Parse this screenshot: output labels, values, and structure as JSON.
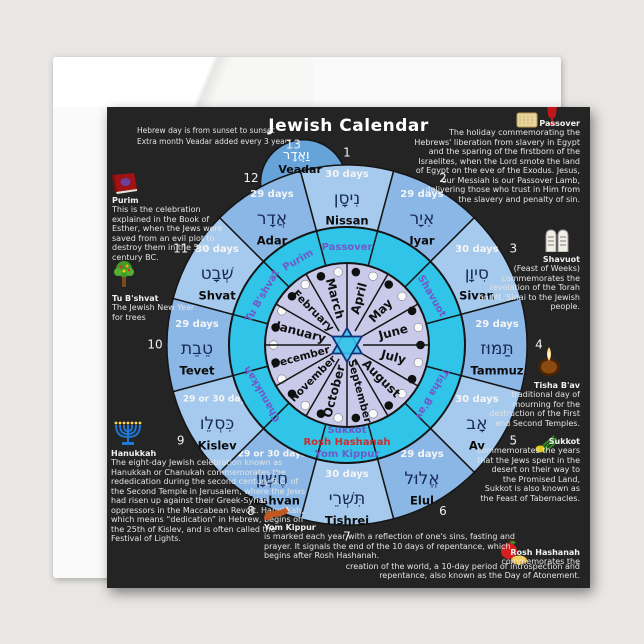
{
  "card": {
    "title": "Jewish Calendar",
    "note_line1": "Hebrew day is from sunset to sunset",
    "note_line2": "Extra month Veadar added every 3 years  →"
  },
  "wheel": {
    "colors": {
      "ring_light": "#a6c9ee",
      "ring_medium": "#8bb7e6",
      "veadar_fill": "#66a3d8",
      "holiday_ring": "#2fc4e8",
      "inner_circle": "#c9c9e9",
      "holiday_text": "#7258c8",
      "rosh_red": "#d42a2a",
      "hebrew_text": "#182a57",
      "star": "#38c6ea",
      "outline": "#151515"
    },
    "months": [
      {
        "num": 1,
        "name": "Nissan",
        "hebrew": "נִיסָן",
        "days": "30 days"
      },
      {
        "num": 2,
        "name": "Iyar",
        "hebrew": "אִיָר",
        "days": "29 days"
      },
      {
        "num": 3,
        "name": "Sivan",
        "hebrew": "סִיוָן",
        "days": "30 days"
      },
      {
        "num": 4,
        "name": "Tammuz",
        "hebrew": "תַּמּוּז",
        "days": "29 days"
      },
      {
        "num": 5,
        "name": "Av",
        "hebrew": "אָב",
        "days": "30 days"
      },
      {
        "num": 6,
        "name": "Elul",
        "hebrew": "אֱלוּל",
        "days": "29 days"
      },
      {
        "num": 7,
        "name": "Tishrei",
        "hebrew": "תִּשְׁרֵי",
        "days": "30 days"
      },
      {
        "num": 8,
        "name": "Heshvan",
        "hebrew": "חֶשְׁוָן",
        "days": "29 or 30 days"
      },
      {
        "num": 9,
        "name": "Kislev",
        "hebrew": "כִּסְלֵו",
        "days": "29 or 30 days"
      },
      {
        "num": 10,
        "name": "Tevet",
        "hebrew": "טֵבֵת",
        "days": "29 days"
      },
      {
        "num": 11,
        "name": "Shvat",
        "hebrew": "שְׁבָט",
        "days": "30 days"
      },
      {
        "num": 12,
        "name": "Adar",
        "hebrew": "אֲדָר",
        "days": "29 days"
      }
    ],
    "veadar": {
      "num": 13,
      "name": "Veadar",
      "hebrew": "וַאֲדָר"
    },
    "gregorian_months": [
      "January",
      "February",
      "March",
      "April",
      "May",
      "June",
      "July",
      "August",
      "September",
      "October",
      "November",
      "December"
    ],
    "ring_labels": {
      "passover": "Passover",
      "shavuot": "Shavuot",
      "tisha_bav": "Tisha B'av",
      "sukkot": "Sukkot",
      "rosh_hashanah": "Rosh Hashanah",
      "yom_kippur": "Yom Kippur",
      "chanukkah": "Chanukkah",
      "tu_bshvat": "Tu B'shvat",
      "purim": "Purim"
    }
  },
  "annotations": {
    "purim": {
      "title": "Purim",
      "text": "This is the celebration explained in the Book of Esther, when the Jews were saved from an evil plot to destroy them in the 5th century BC."
    },
    "tu_bshvat": {
      "title": "Tu B'shvat",
      "text": "The Jewish New Year for trees"
    },
    "hanukkah": {
      "title": "Hanukkah",
      "text": "The eight-day Jewish celebration known as Hanukkah or Chanukah commemorates the rededication during the second century B.C. of the Second Temple in Jerusalem, where the Jews had risen up against their Greek-Syrian oppressors in the Maccabean Revolt. Hanukkah, which means “dedication” in Hebrew, begins on the 25th of Kislev, and is often called the Festival of Lights."
    },
    "passover": {
      "title": "Passover",
      "text": "The holiday commemorating the Hebrews' liberation from slavery in Egypt and the sparing of the firstborn of the Israelites, when the Lord smote the land of Egypt on the eve of the Exodus. Jesus, our Messiah is our Passover Lamb, delivering those who trust in Him from the slavery and penalty of sin."
    },
    "shavuot": {
      "title": "Shavuot",
      "text": "(Feast of Weeks) commemorates the revelation of the Torah on Mt. Sinai to the Jewish people."
    },
    "tisha_bav": {
      "title": "Tisha B'av",
      "text": "traditional day of mourning for the destruction of the First and Second Temples."
    },
    "sukkot": {
      "title": "Sukkot",
      "text": "commemorates the years that the Jews spent in the desert on their way to the Promised Land, Sukkot is also known as the Feast of Tabernacles."
    },
    "rosh_hashanah": {
      "title": "Rosh Hashanah",
      "text": "commemorates the"
    },
    "yom_kippur": {
      "title": "Yom Kippur",
      "text": "is marked each year with a reflection of one's sins, fasting and prayer. It signals the end of the 10 days of repentance, which begins after Rosh Hashanah."
    },
    "continuation": {
      "text": "creation of the world, a 10-day period of introspection and repentance, also known as the Day of Atonement."
    }
  }
}
